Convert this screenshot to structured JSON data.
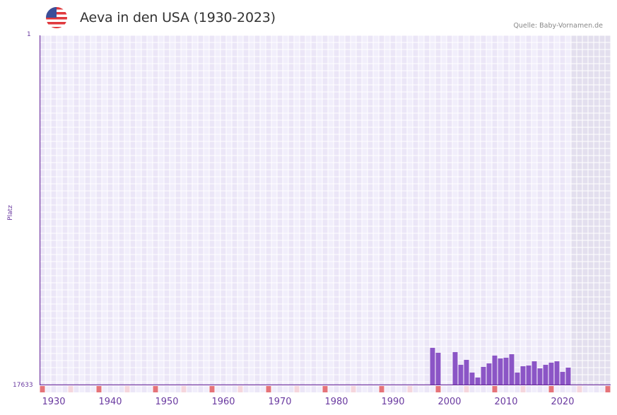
{
  "header": {
    "title": "Aeva in den USA (1930-2023)",
    "flag_icon": "us-flag-icon",
    "source": "Quelle: Baby-Vornamen.de"
  },
  "colors": {
    "bar": "#8b55c6",
    "axis": "#6a2a9c",
    "grid_a": "#f1eefb",
    "grid_b": "#ebe6f7",
    "future_shade": "#e3dfee",
    "decade_marker": "#e57379",
    "half_decade_marker": "#f5d6dd"
  },
  "chart_data": {
    "type": "bar",
    "title": "Aeva in den USA (1930-2023)",
    "xlabel": "",
    "ylabel": "Platz",
    "y_inverted": true,
    "ylim": [
      17633,
      1
    ],
    "x_range": [
      1928,
      2028
    ],
    "x_ticks": [
      1930,
      1940,
      1950,
      1960,
      1970,
      1980,
      1990,
      2000,
      2010,
      2020
    ],
    "y_ticks": [
      1,
      17633
    ],
    "grid": true,
    "shaded_future_from": 2022,
    "x": [
      1997,
      1998,
      2001,
      2002,
      2003,
      2004,
      2005,
      2006,
      2007,
      2008,
      2009,
      2010,
      2011,
      2012,
      2013,
      2014,
      2015,
      2016,
      2017,
      2018,
      2019,
      2020,
      2021
    ],
    "values": [
      15746,
      15995,
      15960,
      16601,
      16352,
      16992,
      17241,
      16707,
      16529,
      16137,
      16280,
      16244,
      16066,
      16992,
      16672,
      16636,
      16423,
      16779,
      16601,
      16494,
      16423,
      16957,
      16743
    ]
  },
  "axis": {
    "y_top_label": "1",
    "y_bottom_label": "17633",
    "y_title": "Platz",
    "x_labels": [
      "1930",
      "1940",
      "1950",
      "1960",
      "1970",
      "1980",
      "1990",
      "2000",
      "2010",
      "2020"
    ]
  }
}
